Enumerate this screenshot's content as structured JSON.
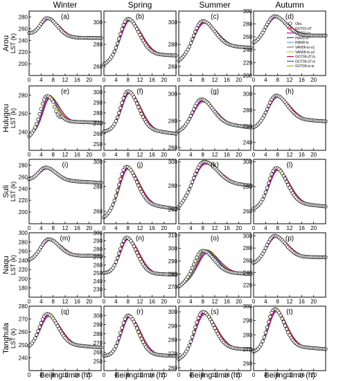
{
  "chart_data": {
    "type": "line",
    "columns": [
      "Winter",
      "Spring",
      "Summer",
      "Autumn"
    ],
    "rows": [
      "Arou",
      "Hulugou",
      "Suli",
      "Naqu",
      "Tanghula"
    ],
    "ylabel": "LST (k)",
    "xlabel": "Beijing time (h)",
    "xlim": [
      0,
      24
    ],
    "xticks": [
      0,
      4,
      8,
      12,
      16,
      20
    ],
    "legend": {
      "placement": "panel (d), top-right",
      "entries": [
        {
          "name": "Obs",
          "color": "#000000",
          "marker": "open-circle"
        },
        {
          "name": "GOT01-dT",
          "color": "#e63a2a"
        },
        {
          "name": "GOT01-ts",
          "color": "#cc00cc"
        },
        {
          "name": "INA08-dT",
          "color": "#2a3fd4"
        },
        {
          "name": "INA08-ts",
          "color": "#5aa0e0"
        },
        {
          "name": "VAN06-ts-u1",
          "color": "#777777"
        },
        {
          "name": "VAN06-ts-u2",
          "color": "#d4bf00"
        },
        {
          "name": "GOT09-dT-ts",
          "color": "#c00050"
        },
        {
          "name": "GOT09-dT-ts",
          "color": "#2a5fbf"
        },
        {
          "name": "GOT09-ts-ts",
          "color": "#8ab000"
        }
      ]
    },
    "panels": [
      {
        "label": "(a)",
        "row": "Arou",
        "season": "Winter",
        "ylim": [
          180,
          290
        ],
        "yticks": [
          200,
          220,
          240,
          260,
          280
        ],
        "night": 252,
        "base": 245,
        "end": 244,
        "peak": 278,
        "tpeak": 6,
        "sigma": 2.3,
        "obsShift": 0,
        "dip": 0
      },
      {
        "label": "(b)",
        "row": "Arou",
        "season": "Spring",
        "ylim": [
          252,
          310
        ],
        "yticks": [
          260,
          280,
          300
        ],
        "night": 262,
        "base": 272,
        "end": 270,
        "peak": 303,
        "tpeak": 8,
        "sigma": 2.5,
        "obsShift": 0,
        "dip": 0
      },
      {
        "label": "(c)",
        "row": "Arou",
        "season": "Summer",
        "ylim": [
          252,
          310
        ],
        "yticks": [
          260,
          280,
          300
        ],
        "night": 265,
        "base": 280,
        "end": 277,
        "peak": 301,
        "tpeak": 8,
        "sigma": 2.6,
        "obsShift": 0,
        "dip": 0
      },
      {
        "label": "(d)",
        "row": "Arou",
        "season": "Autumn",
        "ylim": [
          200,
          300
        ],
        "yticks": [
          200,
          220,
          240,
          260,
          280,
          300
        ],
        "night": 250,
        "base": 262,
        "end": 262,
        "peak": 292,
        "tpeak": 7,
        "sigma": 2.6,
        "obsShift": 0,
        "dip": 0
      },
      {
        "label": "(e)",
        "row": "Hulugou",
        "season": "Winter",
        "ylim": [
          220,
          290
        ],
        "yticks": [
          240,
          260,
          280
        ],
        "night": 235,
        "base": 252,
        "end": 250,
        "peak": 279,
        "tpeak": 6.5,
        "sigma": 1.9,
        "obsShift": -0.5,
        "dip": 5
      },
      {
        "label": "(f)",
        "row": "Hulugou",
        "season": "Spring",
        "ylim": [
          244,
          306
        ],
        "yticks": [
          250,
          260,
          270,
          280,
          290,
          300
        ],
        "night": 262,
        "base": 266,
        "end": 260,
        "peak": 301,
        "tpeak": 8,
        "sigma": 2.3,
        "obsShift": 0,
        "dip": 0
      },
      {
        "label": "(g)",
        "row": "Hulugou",
        "season": "Summer",
        "ylim": [
          258,
          306
        ],
        "yticks": [
          260,
          280,
          300
        ],
        "night": 272,
        "base": 280,
        "end": 275,
        "peak": 296,
        "tpeak": 7.5,
        "sigma": 2.5,
        "obsShift": 0,
        "dip": 0
      },
      {
        "label": "(h)",
        "row": "Hulugou",
        "season": "Autumn",
        "ylim": [
          230,
          310
        ],
        "yticks": [
          240,
          260,
          280,
          300
        ],
        "night": 258,
        "base": 270,
        "end": 266,
        "peak": 298,
        "tpeak": 7.5,
        "sigma": 2.5,
        "obsShift": 0,
        "dip": 0
      },
      {
        "label": "(i)",
        "row": "Suli",
        "season": "Winter",
        "ylim": [
          180,
          290
        ],
        "yticks": [
          200,
          220,
          240,
          260,
          280
        ],
        "night": 255,
        "base": 255,
        "end": 250,
        "peak": 276,
        "tpeak": 5.5,
        "sigma": 2.3,
        "obsShift": 0,
        "dip": 0
      },
      {
        "label": "(j)",
        "row": "Suli",
        "season": "Spring",
        "ylim": [
          250,
          302
        ],
        "yticks": [
          260,
          280,
          300
        ],
        "night": 255,
        "base": 268,
        "end": 262,
        "peak": 296,
        "tpeak": 7.5,
        "sigma": 2.3,
        "obsShift": 0,
        "dip": 0
      },
      {
        "label": "(k)",
        "row": "Suli",
        "season": "Summer",
        "ylim": [
          248,
          302
        ],
        "yticks": [
          260,
          280,
          300
        ],
        "night": 262,
        "base": 284,
        "end": 280,
        "peak": 300,
        "tpeak": 8.5,
        "sigma": 2.8,
        "obsShift": 0,
        "dip": 0
      },
      {
        "label": "(l)",
        "row": "Suli",
        "season": "Autumn",
        "ylim": [
          250,
          302
        ],
        "yticks": [
          260,
          280,
          300
        ],
        "night": 262,
        "base": 268,
        "end": 264,
        "peak": 295,
        "tpeak": 7.5,
        "sigma": 2.4,
        "obsShift": 0,
        "dip": 0
      },
      {
        "label": "(m)",
        "row": "Naqu",
        "season": "Winter",
        "ylim": [
          160,
          300
        ],
        "yticks": [
          180,
          200,
          220,
          240,
          260,
          280,
          300
        ],
        "night": 240,
        "base": 250,
        "end": 250,
        "peak": 286,
        "tpeak": 6.5,
        "sigma": 2.4,
        "obsShift": 0,
        "dip": 0
      },
      {
        "label": "(n)",
        "row": "Naqu",
        "season": "Spring",
        "ylim": [
          220,
          300
        ],
        "yticks": [
          230,
          240,
          250,
          260,
          270,
          280,
          290,
          300
        ],
        "night": 250,
        "base": 250,
        "end": 248,
        "peak": 294,
        "tpeak": 7.5,
        "sigma": 2.3,
        "obsShift": 0,
        "dip": 0
      },
      {
        "label": "(o)",
        "row": "Naqu",
        "season": "Summer",
        "ylim": [
          262,
          312
        ],
        "yticks": [
          270,
          280,
          290,
          300,
          310
        ],
        "night": 270,
        "base": 282,
        "end": 280,
        "peak": 298,
        "tpeak": 9,
        "sigma": 2.5,
        "obsShift": -1,
        "dip": 0
      },
      {
        "label": "(p)",
        "row": "Naqu",
        "season": "Autumn",
        "ylim": [
          200,
          305
        ],
        "yticks": [
          220,
          240,
          260,
          280,
          300
        ],
        "night": 255,
        "base": 266,
        "end": 265,
        "peak": 300,
        "tpeak": 7,
        "sigma": 2.5,
        "obsShift": 0,
        "dip": 0
      },
      {
        "label": "(q)",
        "row": "Tanghula",
        "season": "Winter",
        "ylim": [
          230,
          280
        ],
        "yticks": [
          240,
          250,
          260,
          270,
          280
        ],
        "night": 248,
        "base": 251,
        "end": 248,
        "peak": 274,
        "tpeak": 6,
        "sigma": 2.4,
        "obsShift": 0,
        "dip": 0
      },
      {
        "label": "(r)",
        "row": "Tanghula",
        "season": "Spring",
        "ylim": [
          240,
          310
        ],
        "yticks": [
          250,
          260,
          270,
          280,
          290,
          300
        ],
        "night": 256,
        "base": 258,
        "end": 256,
        "peak": 300,
        "tpeak": 8,
        "sigma": 2.3,
        "obsShift": 0,
        "dip": 0
      },
      {
        "label": "(s)",
        "row": "Tanghula",
        "season": "Summer",
        "ylim": [
          258,
          304
        ],
        "yticks": [
          260,
          270,
          280,
          290,
          300
        ],
        "night": 266,
        "base": 275,
        "end": 273,
        "peak": 300,
        "tpeak": 8,
        "sigma": 2.5,
        "obsShift": 0,
        "dip": 0
      },
      {
        "label": "(t)",
        "row": "Tanghula",
        "season": "Autumn",
        "ylim": [
          255,
          300
        ],
        "yticks": [
          260,
          270,
          280,
          290,
          300
        ],
        "night": 268,
        "base": 273,
        "end": 270,
        "peak": 298,
        "tpeak": 7,
        "sigma": 2.2,
        "obsShift": 0,
        "dip": 0
      }
    ]
  }
}
